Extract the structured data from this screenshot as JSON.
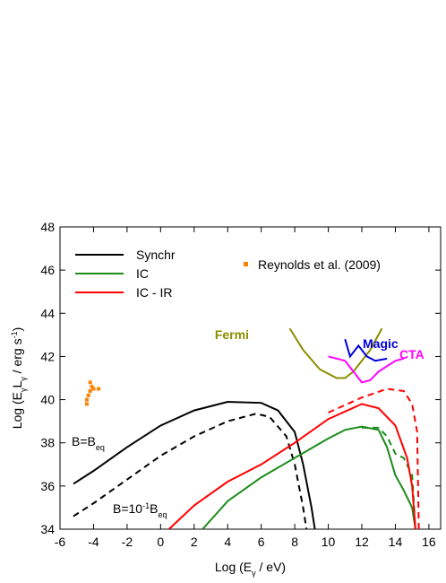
{
  "chart_data": {
    "type": "line",
    "xlabel": {
      "parts": [
        "Log (E",
        "γ",
        " / eV)"
      ],
      "styles": [
        "",
        "sub",
        ""
      ]
    },
    "ylabel": {
      "parts": [
        "Log (E",
        "γ",
        "L",
        "γ",
        " / erg s",
        "-1",
        ")"
      ],
      "styles": [
        "",
        "sub",
        "",
        "sub",
        "",
        "sup",
        ""
      ]
    },
    "xlim": [
      -6,
      16.7
    ],
    "ylim": [
      34,
      48
    ],
    "xticks": [
      -6,
      -4,
      -2,
      0,
      2,
      4,
      6,
      8,
      10,
      12,
      14,
      16
    ],
    "yticks": [
      34,
      36,
      38,
      40,
      42,
      44,
      46,
      48
    ],
    "series": [
      {
        "name": "Synchr",
        "color": "#000000",
        "legend": true,
        "x": [
          -5.2,
          -4,
          -2,
          0,
          2,
          4,
          6,
          7,
          8,
          8.5,
          9,
          9.2
        ],
        "values": [
          36.1,
          36.7,
          37.8,
          38.8,
          39.5,
          39.9,
          39.85,
          39.5,
          38.5,
          37,
          35,
          34
        ]
      },
      {
        "color": "#000000",
        "dash": true,
        "x": [
          -5.2,
          -4,
          -2,
          0,
          2,
          4,
          5.7,
          6.5,
          7.5,
          8,
          8.5,
          8.7
        ],
        "values": [
          34.6,
          35.2,
          36.3,
          37.4,
          38.3,
          39,
          39.35,
          39.2,
          38.3,
          37,
          35,
          34
        ]
      },
      {
        "name": "IC",
        "color": "#1a8c1a",
        "legend": true,
        "x": [
          2.5,
          4,
          6,
          8,
          10,
          11,
          12,
          13,
          13.5,
          14,
          14.5,
          15,
          15.2
        ],
        "values": [
          34,
          35.3,
          36.4,
          37.3,
          38.2,
          38.6,
          38.75,
          38.6,
          37.8,
          36.5,
          35.8,
          35,
          34
        ]
      },
      {
        "color": "#1a8c1a",
        "dash": true,
        "x": [
          12,
          13,
          13.5,
          14,
          14.5,
          15,
          15.2
        ],
        "values": [
          38.7,
          38.7,
          38.3,
          37.5,
          37.3,
          36.5,
          34
        ]
      },
      {
        "name": "IC - IR",
        "color": "#ff0000",
        "legend": true,
        "x": [
          0.5,
          2,
          4,
          6,
          8,
          10,
          12,
          13,
          14,
          14.7,
          15,
          15.2
        ],
        "values": [
          34,
          35.1,
          36.2,
          37,
          38,
          39.1,
          39.8,
          39.6,
          38.8,
          37.3,
          36,
          34
        ]
      },
      {
        "color": "#ff0000",
        "dash": true,
        "x": [
          10,
          12,
          13.5,
          14.5,
          15,
          15.3,
          15.4
        ],
        "values": [
          39.4,
          40.1,
          40.5,
          40.4,
          39.8,
          38.5,
          34
        ]
      },
      {
        "name": "Fermi",
        "color": "#8c8c00",
        "x": [
          7.7,
          8.5,
          9.5,
          10.5,
          11,
          11.5,
          12.5,
          13.2
        ],
        "values": [
          43.3,
          42.3,
          41.4,
          41,
          41,
          41.3,
          42.3,
          43.3
        ]
      },
      {
        "name": "Magic",
        "color": "#0000dd",
        "x": [
          11,
          11.3,
          11.8,
          12.3,
          12.8,
          13.5
        ],
        "values": [
          42.8,
          42,
          42.5,
          42,
          41.8,
          41.9
        ]
      },
      {
        "name": "CTA",
        "color": "#ff00ff",
        "x": [
          10,
          11,
          11.5,
          12,
          12.5,
          13,
          14,
          14.5
        ],
        "values": [
          42,
          41.8,
          41.3,
          40.8,
          40.9,
          41.3,
          41.8,
          41.9
        ]
      },
      {
        "name": "Reynolds et al. (2009)",
        "color": "#ff8000",
        "type": "scatter",
        "legend": true,
        "x": [
          -4.4,
          -4.4,
          -4.3,
          -4.2,
          -4.0,
          -3.7,
          -4.1,
          -4.2
        ],
        "values": [
          39.8,
          40,
          40.2,
          40.4,
          40.5,
          40.5,
          40.6,
          40.8
        ]
      }
    ],
    "annotations": [
      {
        "parts": [
          "B=B",
          "eq"
        ],
        "styles": [
          "",
          "sub"
        ]
      },
      {
        "parts": [
          "B=10",
          "-1",
          "B",
          "eq"
        ],
        "styles": [
          "",
          "sup",
          "",
          "sub"
        ]
      }
    ]
  }
}
